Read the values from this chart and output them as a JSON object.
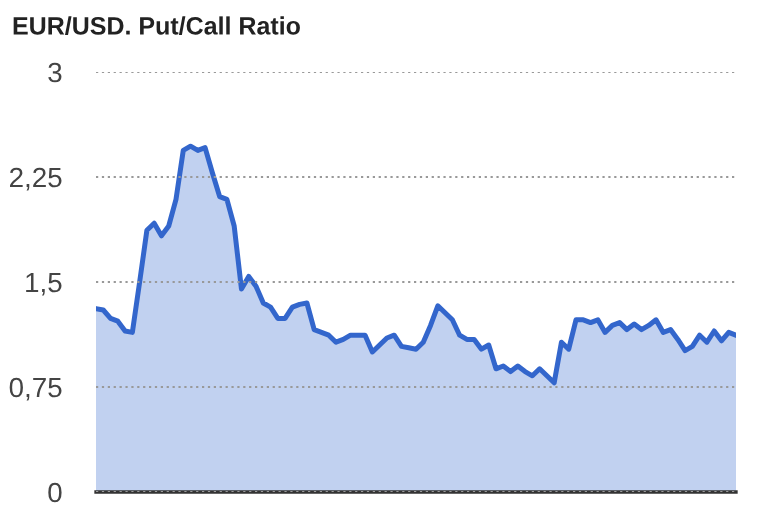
{
  "chart_data": {
    "type": "area",
    "title": "EUR/USD. Put/Call Ratio",
    "categories": [
      null,
      null,
      null,
      null,
      null,
      null,
      null,
      null,
      null,
      null,
      null,
      null,
      null,
      null,
      null,
      null,
      null,
      null,
      null,
      null,
      null,
      null,
      null,
      null,
      null,
      null,
      null,
      null,
      null,
      null,
      null,
      null,
      null,
      null,
      null,
      null,
      null,
      null,
      null,
      null,
      null,
      null,
      null,
      null,
      null,
      null,
      null,
      null,
      null,
      null,
      null,
      null,
      null,
      null,
      null,
      null,
      null,
      null,
      null,
      null,
      null,
      null,
      null,
      null,
      null,
      null,
      null,
      null,
      null,
      null,
      null,
      null,
      null,
      null,
      null,
      null,
      null,
      null,
      null,
      null,
      null,
      null,
      null,
      null,
      null,
      null,
      null,
      null,
      null
    ],
    "series": [
      {
        "color": "#3366cc",
        "values": [
          1.31,
          1.3,
          1.24,
          1.22,
          1.15,
          1.14,
          1.5,
          1.87,
          1.92,
          1.83,
          1.9,
          2.09,
          2.44,
          2.47,
          2.44,
          2.46,
          2.28,
          2.11,
          2.09,
          1.9,
          1.45,
          1.54,
          1.47,
          1.35,
          1.32,
          1.24,
          1.24,
          1.32,
          1.34,
          1.35,
          1.16,
          1.14,
          1.12,
          1.07,
          1.09,
          1.12,
          1.12,
          1.12,
          1.0,
          1.05,
          1.1,
          1.12,
          1.04,
          1.03,
          1.02,
          1.07,
          1.19,
          1.33,
          1.28,
          1.23,
          1.12,
          1.09,
          1.09,
          1.02,
          1.05,
          0.88,
          0.9,
          0.86,
          0.9,
          0.86,
          0.83,
          0.88,
          0.83,
          0.78,
          1.07,
          1.02,
          1.23,
          1.23,
          1.21,
          1.23,
          1.14,
          1.19,
          1.21,
          1.16,
          1.2,
          1.16,
          1.19,
          1.23,
          1.14,
          1.16,
          1.09,
          1.01,
          1.04,
          1.12,
          1.07,
          1.15,
          1.08,
          1.14,
          1.12
        ]
      }
    ],
    "ylim": [
      0,
      3
    ],
    "yticks": [
      0,
      {
        "value": 0.75,
        "label": "0,75"
      },
      {
        "value": 1.5,
        "label": "1,5"
      },
      {
        "value": 2.25,
        "label": "2,25"
      },
      3
    ],
    "grid": "y",
    "tick_labels": "y",
    "legend": false
  }
}
